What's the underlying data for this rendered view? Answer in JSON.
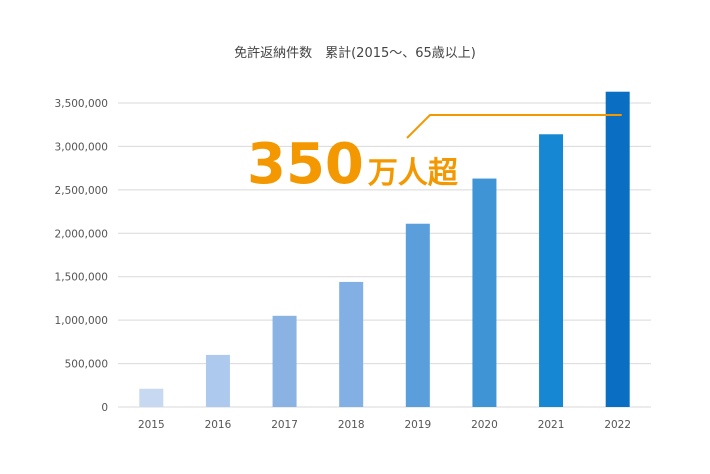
{
  "chart_data": {
    "type": "bar",
    "title": "免許返納件数　累計(2015〜、65歳以上)",
    "categories": [
      "2015",
      "2016",
      "2017",
      "2018",
      "2019",
      "2020",
      "2021",
      "2022"
    ],
    "values": [
      210000,
      600000,
      1050000,
      1440000,
      2110000,
      2630000,
      3140000,
      3630000
    ],
    "ylim": [
      0,
      3500000
    ],
    "yticks": [
      0,
      500000,
      1000000,
      1500000,
      2000000,
      2500000,
      3000000,
      3500000
    ],
    "ytick_labels": [
      "0",
      "500,000",
      "1,000,000",
      "1,500,000",
      "2,000,000",
      "2,500,000",
      "3,000,000",
      "3,500,000"
    ],
    "bar_colors": [
      "#c6d9f1",
      "#adc9ee",
      "#8ab3e3",
      "#82afe4",
      "#5a9edb",
      "#3f94d6",
      "#1687d3",
      "#0a6fc2"
    ],
    "annotation": {
      "number": "350",
      "unit": "万人超",
      "color": "#f39800"
    }
  }
}
